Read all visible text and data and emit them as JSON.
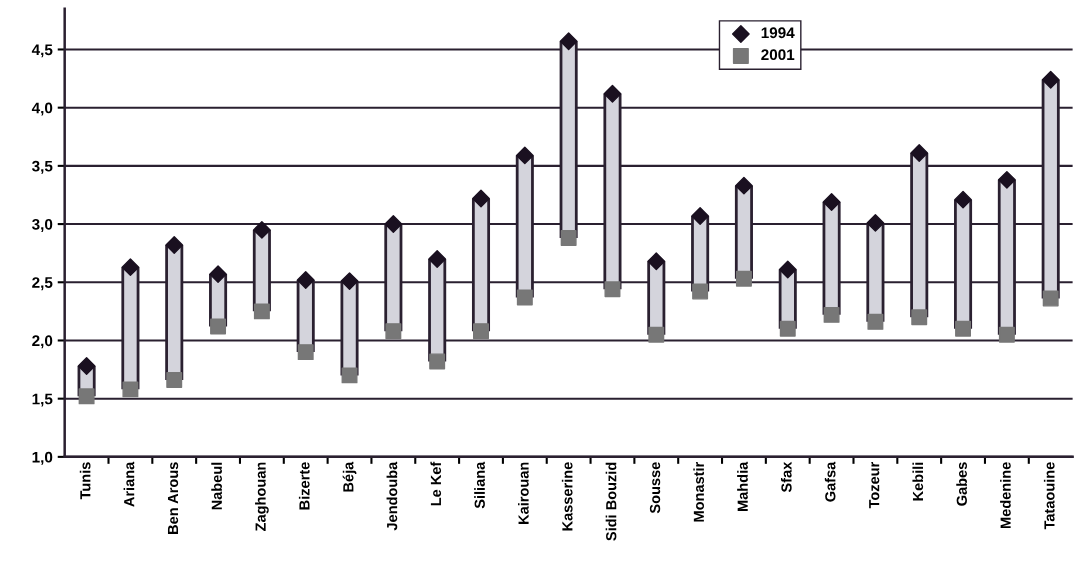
{
  "chart_data": {
    "type": "scatter",
    "categories": [
      "Tunis",
      "Ariana",
      "Ben Arous",
      "Nabeul",
      "Zaghouan",
      "Bizerte",
      "Béja",
      "Jendouba",
      "Le Kef",
      "Siliana",
      "Kairouan",
      "Kasserine",
      "Sidi Bouzid",
      "Sousse",
      "Monastir",
      "Mahdia",
      "Sfax",
      "Gafsa",
      "Tozeur",
      "Kebili",
      "Gabes",
      "Medenine",
      "Tataouine"
    ],
    "series": [
      {
        "name": "1994",
        "color": "#1a1020",
        "marker": "diamond",
        "values": [
          1.78,
          2.63,
          2.82,
          2.57,
          2.95,
          2.52,
          2.51,
          3.0,
          2.7,
          3.22,
          3.59,
          4.57,
          4.12,
          2.68,
          3.07,
          3.33,
          2.61,
          3.19,
          3.01,
          3.61,
          3.21,
          3.38,
          4.24
        ]
      },
      {
        "name": "2001",
        "color": "#777777",
        "marker": "square",
        "values": [
          1.52,
          1.58,
          1.66,
          2.12,
          2.25,
          1.9,
          1.7,
          2.08,
          1.82,
          2.08,
          2.37,
          2.88,
          2.44,
          2.05,
          2.42,
          2.53,
          2.1,
          2.22,
          2.16,
          2.2,
          2.1,
          2.05,
          2.36
        ]
      }
    ],
    "ylim": [
      1.0,
      4.85
    ],
    "yticks": [
      {
        "value": 1.0,
        "label": "1,0"
      },
      {
        "value": 1.5,
        "label": "1,5"
      },
      {
        "value": 2.0,
        "label": "2,0"
      },
      {
        "value": 2.5,
        "label": "2,5"
      },
      {
        "value": 3.0,
        "label": "3,0"
      },
      {
        "value": 3.5,
        "label": "3,5"
      },
      {
        "value": 4.0,
        "label": "4,0"
      },
      {
        "value": 4.5,
        "label": "4,5"
      }
    ],
    "grid": "y",
    "legend": "top"
  }
}
